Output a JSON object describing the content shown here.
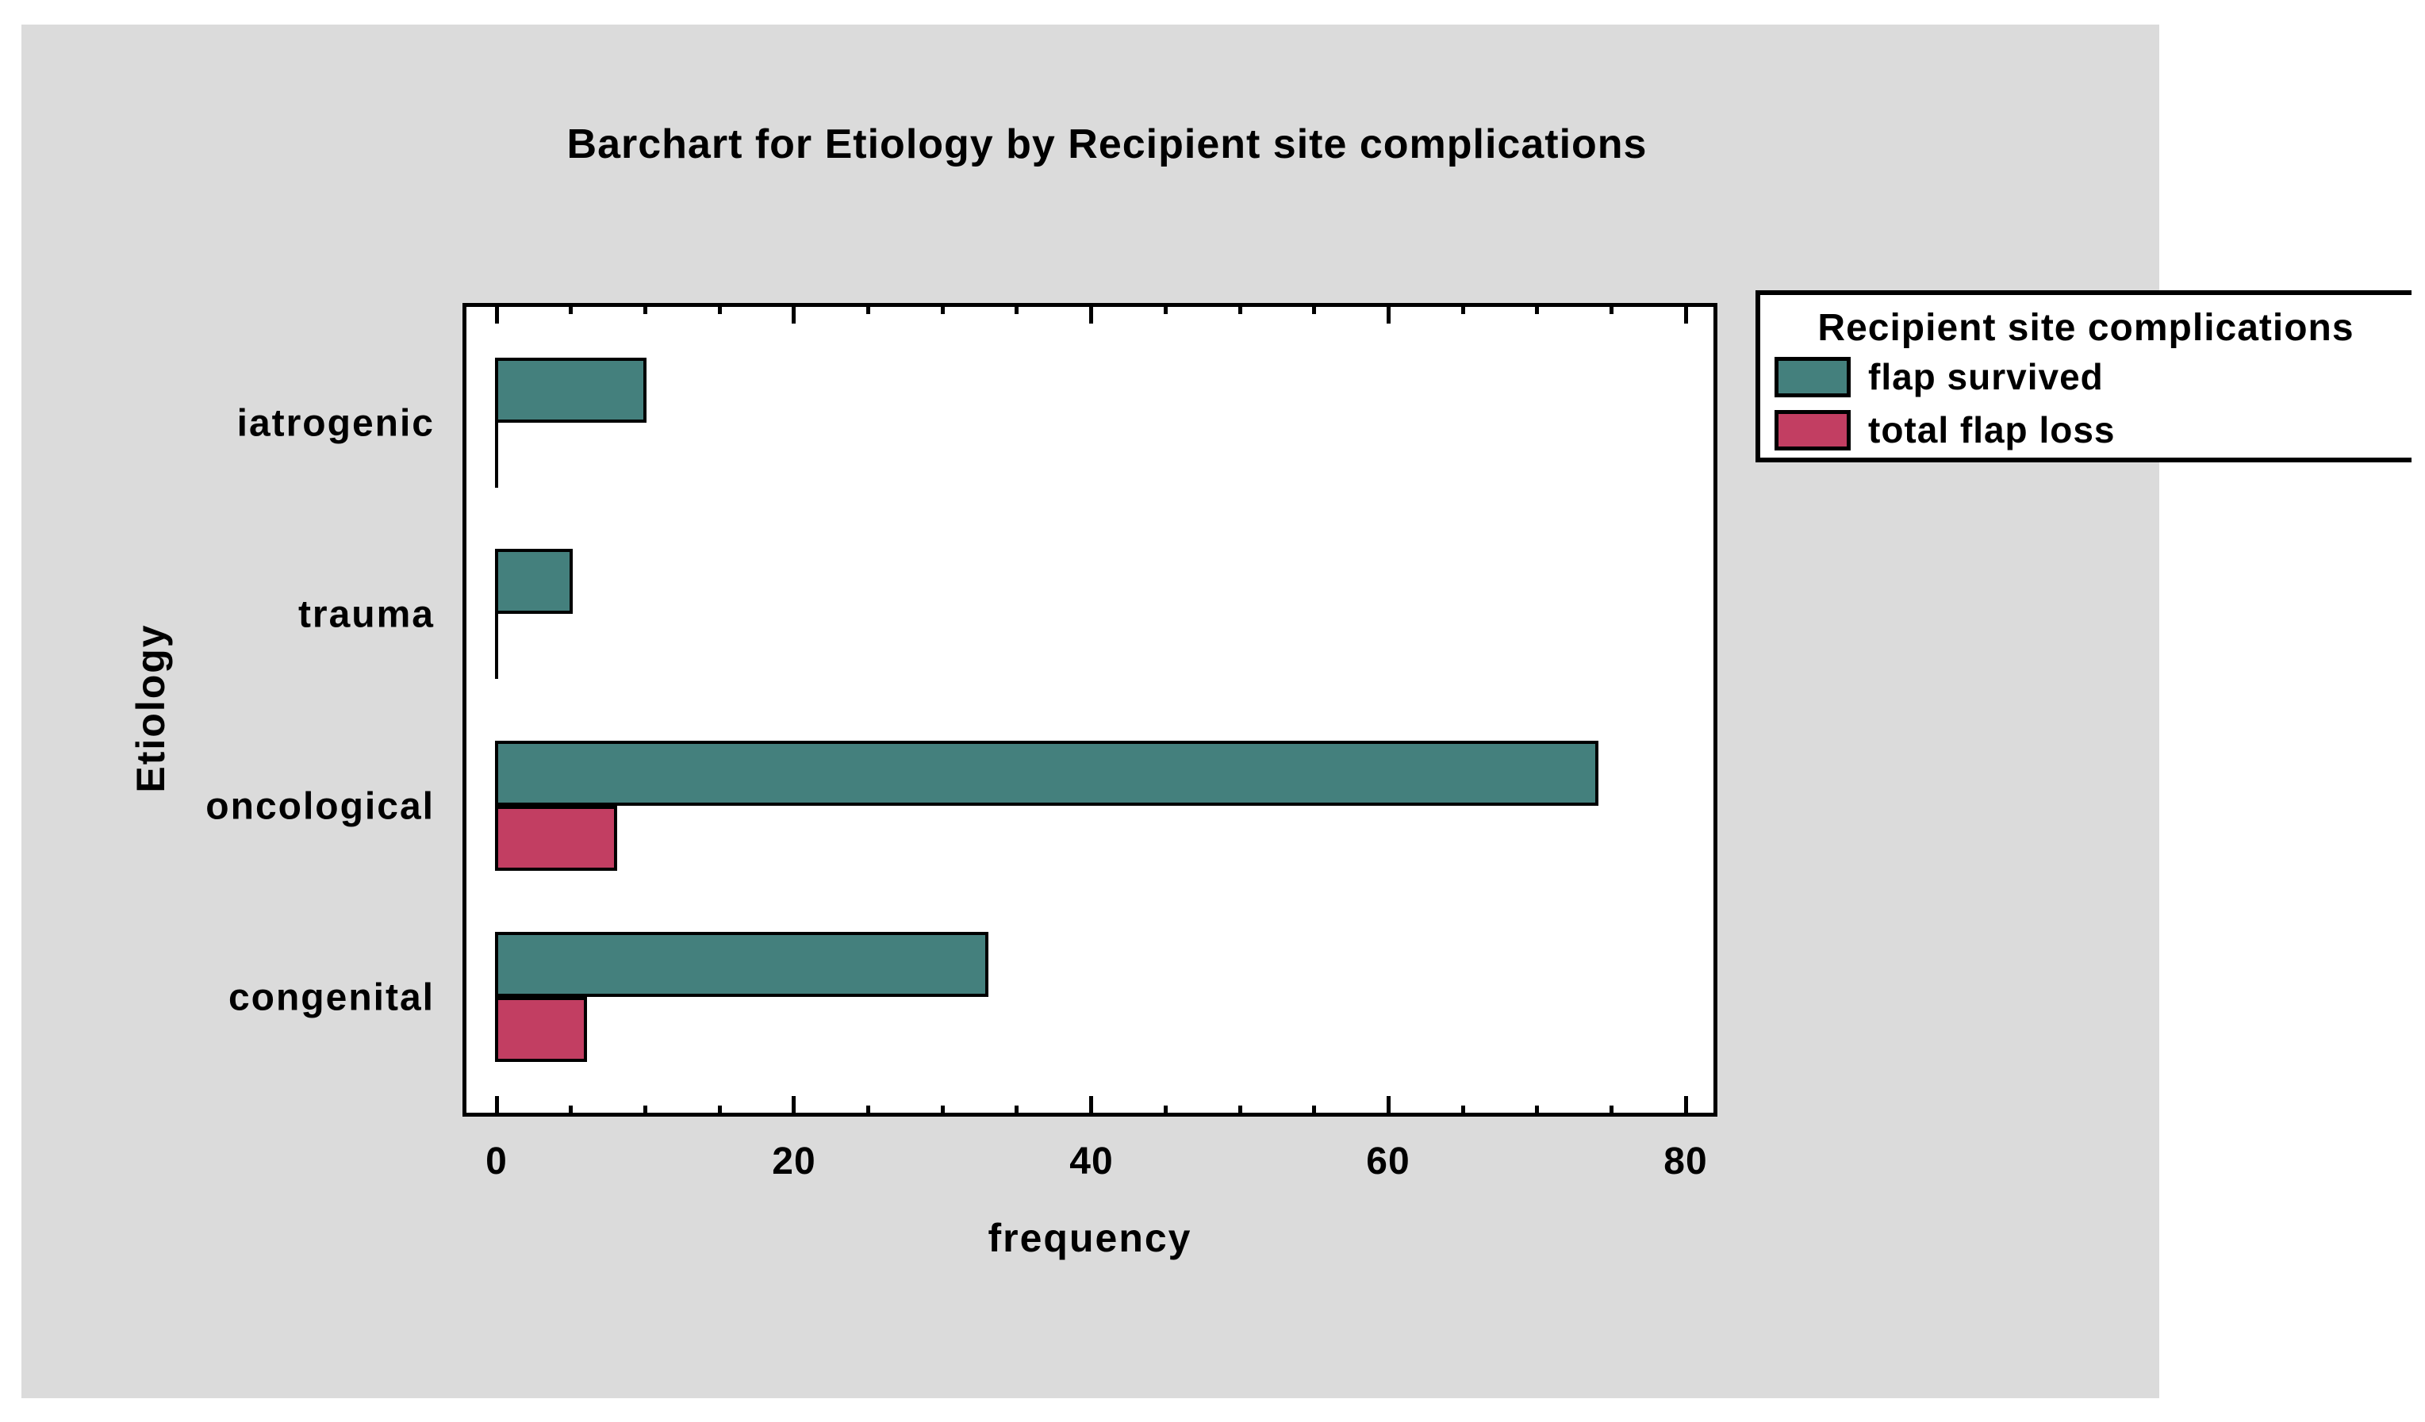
{
  "title": "Barchart for Etiology by Recipient site complications",
  "chart_data": {
    "type": "bar",
    "orientation": "horizontal",
    "title": "Barchart for Etiology by Recipient site complications",
    "categories": [
      "iatrogenic",
      "trauma",
      "oncological",
      "congenital"
    ],
    "series": [
      {
        "name": "flap survived",
        "color": "#44807D",
        "values": [
          10,
          5,
          74,
          33
        ]
      },
      {
        "name": "total flap loss",
        "color": "#C23E62",
        "values": [
          0,
          0,
          8,
          6
        ]
      }
    ],
    "xlabel": "frequency",
    "ylabel": "Etiology",
    "xlim": [
      0,
      82
    ],
    "xticks": [
      0,
      20,
      40,
      60,
      80
    ],
    "minor_tick_step": 5,
    "grid": "off",
    "legend_position": "outside-right",
    "legend_title": "Recipient site complications"
  },
  "colors": {
    "background": "#DBDBDB",
    "plot_background": "#FFFFFF",
    "bar_outline": "#000000",
    "flap_survived": "#44807D",
    "total_flap_loss": "#C23E62"
  }
}
